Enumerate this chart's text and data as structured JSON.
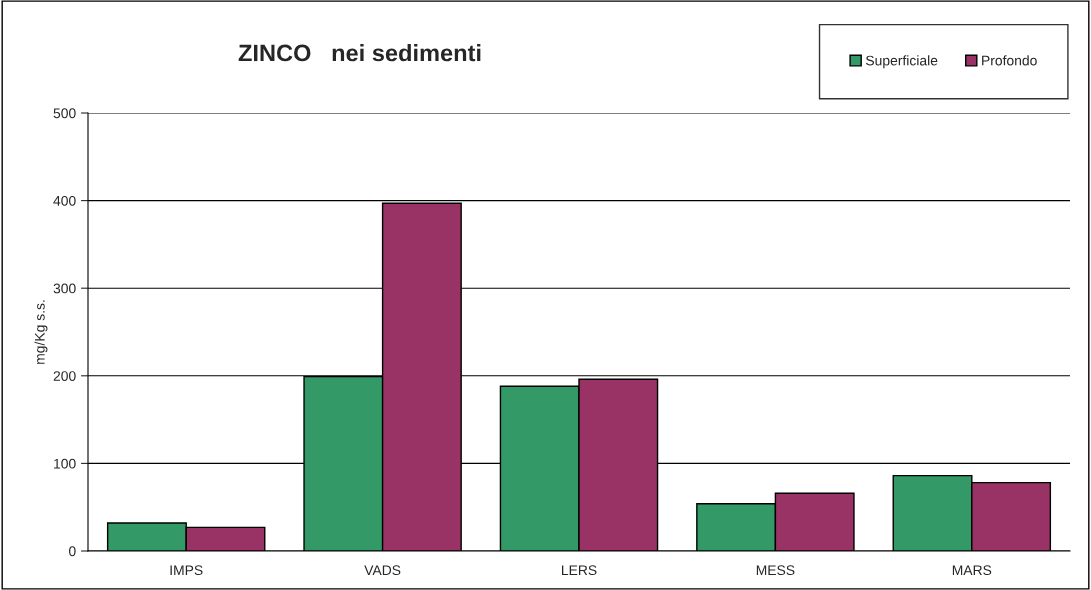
{
  "chart_data": {
    "type": "bar",
    "title": "ZINCO   nei sedimenti",
    "ylabel": "mg/Kg s.s.",
    "categories": [
      "IMPS",
      "VADS",
      "LERS",
      "MESS",
      "MARS"
    ],
    "series": [
      {
        "name": "Superficiale",
        "color": "#339966",
        "values": [
          32,
          199,
          188,
          54,
          86
        ]
      },
      {
        "name": "Profondo",
        "color": "#993366",
        "values": [
          27,
          397,
          196,
          66,
          78
        ]
      }
    ],
    "ylim": [
      0,
      500
    ],
    "yticks": [
      0,
      100,
      200,
      300,
      400,
      500
    ],
    "grid": "y",
    "legend": "top right"
  }
}
